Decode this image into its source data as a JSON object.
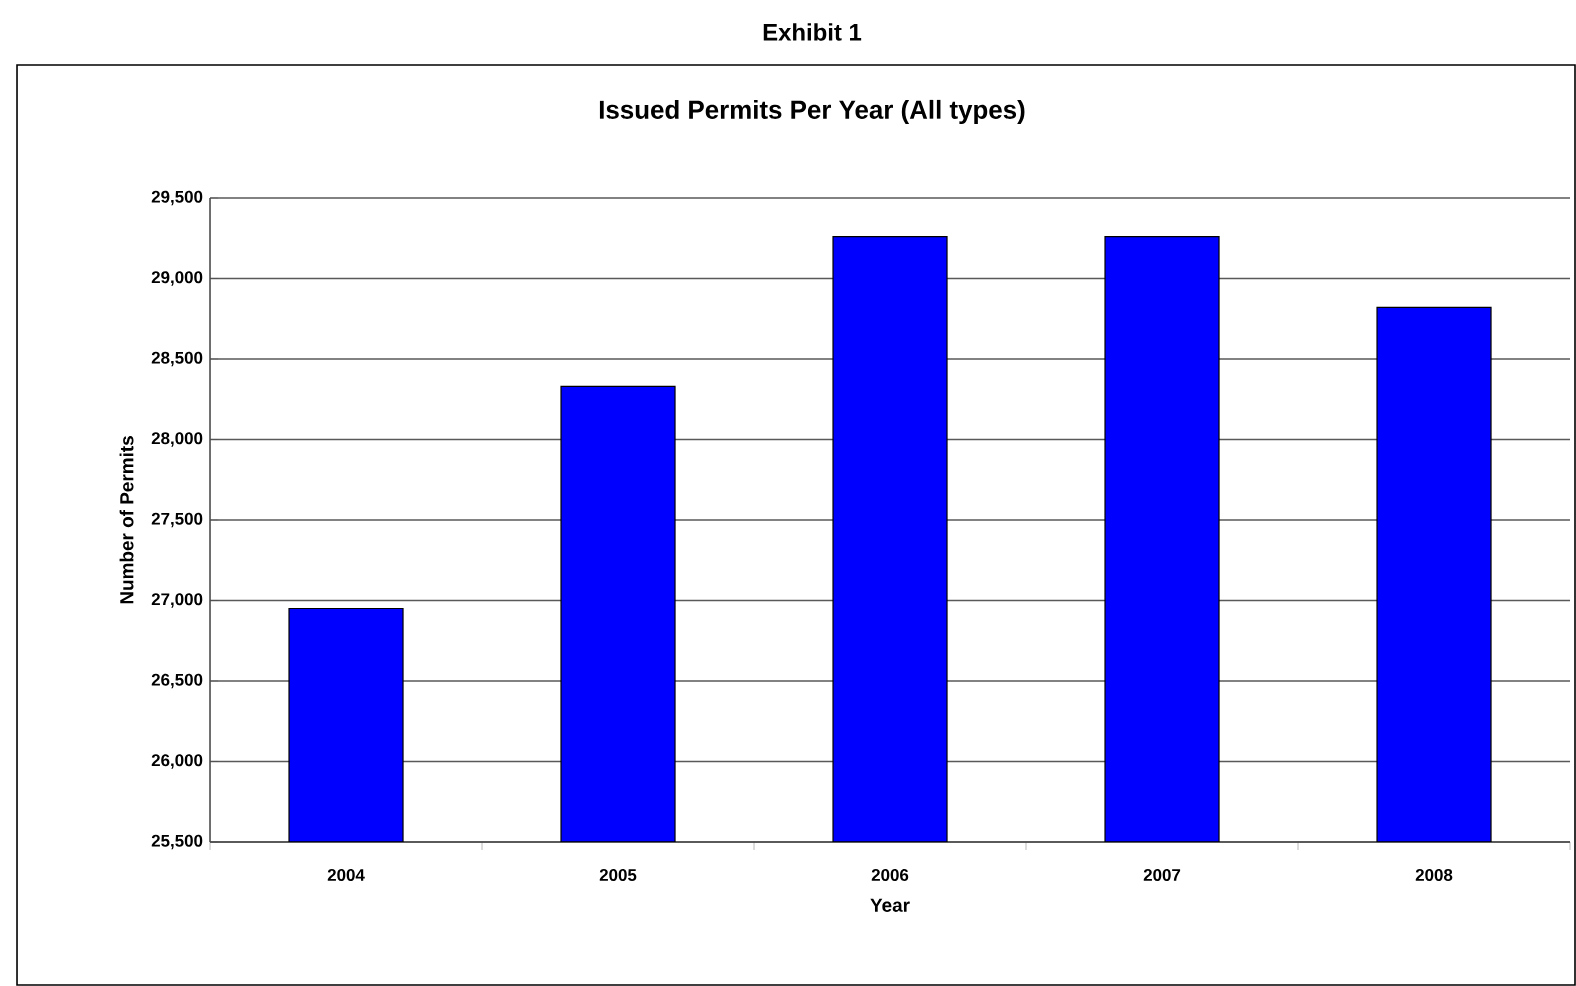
{
  "chart_data": {
    "type": "bar",
    "title": "Exhibit 1",
    "subtitle": "Issued Permits Per Year (All types)",
    "xlabel": "Year",
    "ylabel": "Number of Permits",
    "categories": [
      "2004",
      "2005",
      "2006",
      "2007",
      "2008"
    ],
    "values": [
      26950,
      28330,
      29260,
      29260,
      28820
    ],
    "color": "#0000ff",
    "ylim": [
      25500,
      29500
    ],
    "yticks": [
      {
        "value": 25500,
        "label": "25,500"
      },
      {
        "value": 26000,
        "label": "26,000"
      },
      {
        "value": 26500,
        "label": "26,500"
      },
      {
        "value": 27000,
        "label": "27,000"
      },
      {
        "value": 27500,
        "label": "27,500"
      },
      {
        "value": 28000,
        "label": "28,000"
      },
      {
        "value": 28500,
        "label": "28,500"
      },
      {
        "value": 29000,
        "label": "29,000"
      },
      {
        "value": 29500,
        "label": "29,500"
      }
    ],
    "grid": "y"
  }
}
